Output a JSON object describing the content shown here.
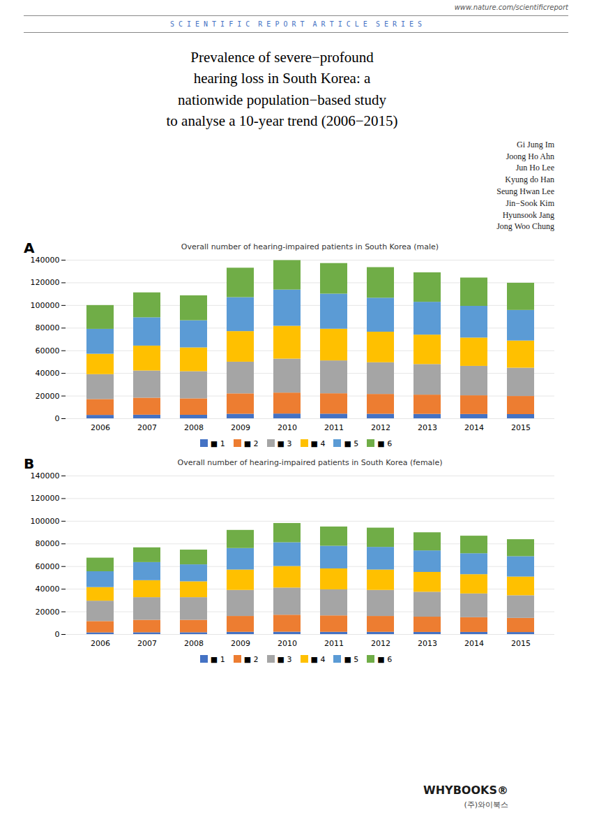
{
  "title": "Prevalence of severe−profound\nhearing loss in South Korea: a\nnationwide population−based study\nto analyse a 10-year trend (2006−2015)",
  "annotations": [
    "www.nature.com/scientificreport",
    "S C I E N T I F I C  R E P O R T  A R T I C L E  S E R I E S",
    "WHYBOOKS®",
    "(주)와이북스"
  ],
  "authors": [
    "Gi Jung Im",
    "Joong Ho Ahn",
    "Jun Ho Lee",
    "Kyung do Han",
    "Seung Hwan Lee",
    "Jin−Sook Kim",
    "Hyunsook Jang",
    "Jong Woo Chung"
  ],
  "chart_data": [
    {
      "type": "bar",
      "stacked": true,
      "title": "Overall number of hearing-impaired patients in South Korea (male)",
      "annotations": [
        "A"
      ],
      "categories": [
        "2006",
        "2007",
        "2008",
        "2009",
        "2010",
        "2011",
        "2012",
        "2013",
        "2014",
        "2015"
      ],
      "series": [
        {
          "name": "■ 1",
          "color": "#4472C4",
          "values": [
            3000,
            3200,
            3100,
            4000,
            4200,
            4100,
            4000,
            3900,
            3800,
            3700
          ]
        },
        {
          "name": "■ 2",
          "color": "#ED7D31",
          "values": [
            14000,
            15000,
            14500,
            18000,
            18500,
            18000,
            17500,
            17000,
            16500,
            16000
          ]
        },
        {
          "name": "■ 3",
          "color": "#A5A5A5",
          "values": [
            22000,
            24000,
            24000,
            28000,
            30000,
            29000,
            28000,
            27000,
            26000,
            25000
          ]
        },
        {
          "name": "■ 4",
          "color": "#FFC000",
          "values": [
            18000,
            22000,
            21000,
            27000,
            29000,
            28000,
            27000,
            26000,
            25000,
            24000
          ]
        },
        {
          "name": "■ 5",
          "color": "#5B9BD5",
          "values": [
            22000,
            25000,
            24000,
            30000,
            32000,
            31000,
            30000,
            29000,
            28000,
            27000
          ]
        },
        {
          "name": "■ 6",
          "color": "#70AD47",
          "values": [
            21000,
            22000,
            22000,
            26000,
            26000,
            27000,
            27000,
            26000,
            25000,
            24000
          ]
        }
      ],
      "ylim": [
        0,
        140000
      ],
      "yticks": [
        0,
        20000,
        40000,
        60000,
        80000,
        100000,
        120000,
        140000
      ],
      "grid": true,
      "legend": "bottom"
    },
    {
      "type": "bar",
      "stacked": true,
      "title": "Overall number of hearing-impaired patients in South Korea (female)",
      "annotations": [
        "B"
      ],
      "categories": [
        "2006",
        "2007",
        "2008",
        "2009",
        "2010",
        "2011",
        "2012",
        "2013",
        "2014",
        "2015"
      ],
      "series": [
        {
          "name": "■ 1",
          "color": "#4472C4",
          "values": [
            1500,
            1600,
            1600,
            2000,
            2100,
            2000,
            2000,
            1900,
            1900,
            1800
          ]
        },
        {
          "name": "■ 2",
          "color": "#ED7D31",
          "values": [
            10000,
            11000,
            11000,
            14000,
            15000,
            14500,
            14000,
            13500,
            13000,
            12500
          ]
        },
        {
          "name": "■ 3",
          "color": "#A5A5A5",
          "values": [
            18000,
            20000,
            20000,
            23000,
            24000,
            23000,
            23000,
            22000,
            21000,
            20000
          ]
        },
        {
          "name": "■ 4",
          "color": "#FFC000",
          "values": [
            12000,
            15000,
            14000,
            18000,
            19000,
            18500,
            18000,
            17500,
            17000,
            16500
          ]
        },
        {
          "name": "■ 5",
          "color": "#5B9BD5",
          "values": [
            14000,
            16000,
            15000,
            19000,
            21000,
            20000,
            20000,
            19000,
            18500,
            18000
          ]
        },
        {
          "name": "■ 6",
          "color": "#70AD47",
          "values": [
            12000,
            13000,
            13000,
            16000,
            17000,
            17000,
            17000,
            16000,
            15500,
            15000
          ]
        }
      ],
      "ylim": [
        0,
        140000
      ],
      "yticks": [
        0,
        20000,
        40000,
        60000,
        80000,
        100000,
        120000,
        140000
      ],
      "grid": true,
      "legend": "bottom"
    }
  ]
}
